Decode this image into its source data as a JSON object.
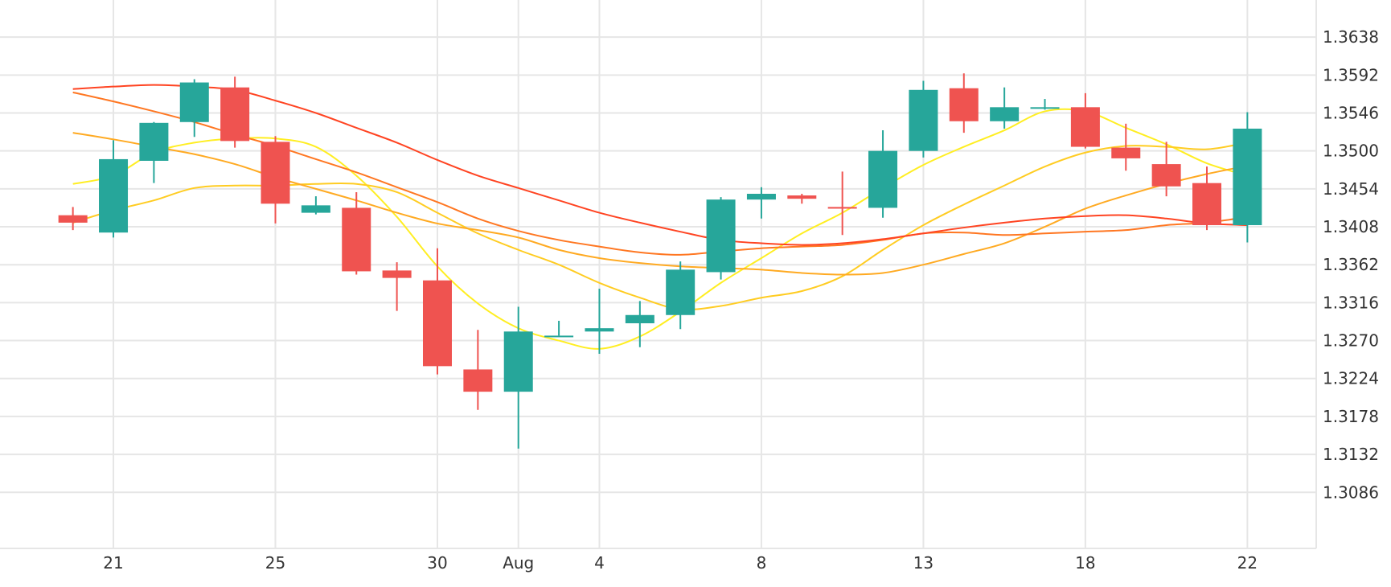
{
  "chart_data": {
    "type": "candlestick",
    "x_tick_labels": [
      {
        "x": 21,
        "label": "21"
      },
      {
        "x": 25,
        "label": "25"
      },
      {
        "x": 29,
        "label": "30"
      },
      {
        "x": 31,
        "label": "Aug"
      },
      {
        "x": 33,
        "label": "4"
      },
      {
        "x": 37,
        "label": "8"
      },
      {
        "x": 41,
        "label": "13"
      },
      {
        "x": 45,
        "label": "18"
      },
      {
        "x": 49,
        "label": "22"
      }
    ],
    "y_tick_labels": [
      "1.3086",
      "1.3132",
      "1.3178",
      "1.3224",
      "1.3270",
      "1.3316",
      "1.3362",
      "1.3408",
      "1.3454",
      "1.3500",
      "1.3546",
      "1.3592",
      "1.3638"
    ],
    "x_range": [
      18.2,
      50.7
    ],
    "y_range": [
      1.3018,
      1.3683
    ],
    "grid": true,
    "colors": {
      "up": "#26a69a",
      "down": "#ef5350"
    },
    "candles": [
      {
        "x": 20,
        "open": 1.3422,
        "high": 1.3432,
        "low": 1.3404,
        "close": 1.3413
      },
      {
        "x": 21,
        "open": 1.3401,
        "high": 1.3513,
        "low": 1.3395,
        "close": 1.349
      },
      {
        "x": 22,
        "open": 1.3488,
        "high": 1.3535,
        "low": 1.3461,
        "close": 1.3534
      },
      {
        "x": 23,
        "open": 1.3535,
        "high": 1.3587,
        "low": 1.3517,
        "close": 1.3583
      },
      {
        "x": 24,
        "open": 1.3577,
        "high": 1.359,
        "low": 1.3504,
        "close": 1.3512
      },
      {
        "x": 25,
        "open": 1.3511,
        "high": 1.3518,
        "low": 1.3412,
        "close": 1.3436
      },
      {
        "x": 26,
        "open": 1.3425,
        "high": 1.3445,
        "low": 1.3423,
        "close": 1.3434
      },
      {
        "x": 27,
        "open": 1.3431,
        "high": 1.345,
        "low": 1.335,
        "close": 1.3354
      },
      {
        "x": 28,
        "open": 1.3355,
        "high": 1.3365,
        "low": 1.3306,
        "close": 1.3346
      },
      {
        "x": 29,
        "open": 1.3343,
        "high": 1.3382,
        "low": 1.3229,
        "close": 1.3239
      },
      {
        "x": 30,
        "open": 1.3235,
        "high": 1.3283,
        "low": 1.3186,
        "close": 1.3208
      },
      {
        "x": 31,
        "open": 1.3208,
        "high": 1.3311,
        "low": 1.3139,
        "close": 1.3281
      },
      {
        "x": 32,
        "open": 1.3276,
        "high": 1.3294,
        "low": 1.3276,
        "close": 1.3276
      },
      {
        "x": 33,
        "open": 1.3281,
        "high": 1.3333,
        "low": 1.3254,
        "close": 1.3285
      },
      {
        "x": 34,
        "open": 1.3291,
        "high": 1.3318,
        "low": 1.3262,
        "close": 1.3301
      },
      {
        "x": 35,
        "open": 1.3301,
        "high": 1.3366,
        "low": 1.3284,
        "close": 1.3356
      },
      {
        "x": 36,
        "open": 1.3353,
        "high": 1.3444,
        "low": 1.3344,
        "close": 1.3441
      },
      {
        "x": 37,
        "open": 1.3441,
        "high": 1.3456,
        "low": 1.3418,
        "close": 1.3448
      },
      {
        "x": 38,
        "open": 1.3446,
        "high": 1.3448,
        "low": 1.3436,
        "close": 1.3442
      },
      {
        "x": 39,
        "open": 1.3432,
        "high": 1.3475,
        "low": 1.3398,
        "close": 1.343
      },
      {
        "x": 40,
        "open": 1.3431,
        "high": 1.3525,
        "low": 1.3419,
        "close": 1.35
      },
      {
        "x": 41,
        "open": 1.35,
        "high": 1.3585,
        "low": 1.3492,
        "close": 1.3574
      },
      {
        "x": 42,
        "open": 1.3576,
        "high": 1.3594,
        "low": 1.3522,
        "close": 1.3536
      },
      {
        "x": 43,
        "open": 1.3536,
        "high": 1.3577,
        "low": 1.3527,
        "close": 1.3553
      },
      {
        "x": 44,
        "open": 1.3553,
        "high": 1.3563,
        "low": 1.355,
        "close": 1.3553
      },
      {
        "x": 45,
        "open": 1.3553,
        "high": 1.357,
        "low": 1.3503,
        "close": 1.3505
      },
      {
        "x": 46,
        "open": 1.3504,
        "high": 1.3533,
        "low": 1.3476,
        "close": 1.3491
      },
      {
        "x": 47,
        "open": 1.3484,
        "high": 1.3511,
        "low": 1.3445,
        "close": 1.3457
      },
      {
        "x": 48,
        "open": 1.3461,
        "high": 1.3481,
        "low": 1.3404,
        "close": 1.341
      },
      {
        "x": 49,
        "open": 1.341,
        "high": 1.3547,
        "low": 1.3389,
        "close": 1.3527
      }
    ],
    "moving_averages": [
      {
        "color": "#ffee22",
        "points": [
          [
            20,
            1.346
          ],
          [
            21,
            1.347
          ],
          [
            22,
            1.3498
          ],
          [
            23,
            1.351
          ],
          [
            24,
            1.3515
          ],
          [
            25,
            1.3515
          ],
          [
            26,
            1.3505
          ],
          [
            27,
            1.347
          ],
          [
            28,
            1.342
          ],
          [
            29,
            1.336
          ],
          [
            30,
            1.3315
          ],
          [
            31,
            1.3285
          ],
          [
            32,
            1.327
          ],
          [
            33,
            1.326
          ],
          [
            34,
            1.3275
          ],
          [
            35,
            1.3305
          ],
          [
            36,
            1.334
          ],
          [
            37,
            1.337
          ],
          [
            38,
            1.34
          ],
          [
            39,
            1.3425
          ],
          [
            40,
            1.3455
          ],
          [
            41,
            1.3483
          ],
          [
            42,
            1.3505
          ],
          [
            43,
            1.3525
          ],
          [
            44,
            1.3548
          ],
          [
            45,
            1.3548
          ],
          [
            46,
            1.3528
          ],
          [
            47,
            1.3508
          ],
          [
            48,
            1.3485
          ],
          [
            49,
            1.347
          ]
        ]
      },
      {
        "color": "#ffcc22",
        "points": [
          [
            20,
            1.3413
          ],
          [
            21,
            1.3428
          ],
          [
            22,
            1.344
          ],
          [
            23,
            1.3455
          ],
          [
            24,
            1.3458
          ],
          [
            25,
            1.3458
          ],
          [
            26,
            1.346
          ],
          [
            27,
            1.346
          ],
          [
            28,
            1.345
          ],
          [
            29,
            1.3425
          ],
          [
            30,
            1.34
          ],
          [
            31,
            1.338
          ],
          [
            32,
            1.3362
          ],
          [
            33,
            1.334
          ],
          [
            34,
            1.3322
          ],
          [
            35,
            1.3308
          ],
          [
            36,
            1.3312
          ],
          [
            37,
            1.3322
          ],
          [
            38,
            1.333
          ],
          [
            39,
            1.3348
          ],
          [
            40,
            1.338
          ],
          [
            41,
            1.341
          ],
          [
            42,
            1.3435
          ],
          [
            43,
            1.3458
          ],
          [
            44,
            1.3481
          ],
          [
            45,
            1.3498
          ],
          [
            46,
            1.3506
          ],
          [
            47,
            1.3505
          ],
          [
            48,
            1.3502
          ],
          [
            49,
            1.351
          ]
        ]
      },
      {
        "color": "#ffaa22",
        "points": [
          [
            20,
            1.3522
          ],
          [
            21,
            1.3514
          ],
          [
            22,
            1.3505
          ],
          [
            23,
            1.3496
          ],
          [
            24,
            1.3484
          ],
          [
            25,
            1.3468
          ],
          [
            26,
            1.3454
          ],
          [
            27,
            1.344
          ],
          [
            28,
            1.3425
          ],
          [
            29,
            1.3412
          ],
          [
            30,
            1.3404
          ],
          [
            31,
            1.3395
          ],
          [
            32,
            1.338
          ],
          [
            33,
            1.337
          ],
          [
            34,
            1.3364
          ],
          [
            35,
            1.336
          ],
          [
            36,
            1.3358
          ],
          [
            37,
            1.3356
          ],
          [
            38,
            1.3352
          ],
          [
            39,
            1.335
          ],
          [
            40,
            1.3352
          ],
          [
            41,
            1.3362
          ],
          [
            42,
            1.3375
          ],
          [
            43,
            1.3388
          ],
          [
            44,
            1.3408
          ],
          [
            45,
            1.343
          ],
          [
            46,
            1.3446
          ],
          [
            47,
            1.346
          ],
          [
            48,
            1.3472
          ],
          [
            49,
            1.3482
          ]
        ]
      },
      {
        "color": "#ff7722",
        "points": [
          [
            20,
            1.3571
          ],
          [
            21,
            1.356
          ],
          [
            22,
            1.3548
          ],
          [
            23,
            1.3535
          ],
          [
            24,
            1.352
          ],
          [
            25,
            1.3506
          ],
          [
            26,
            1.349
          ],
          [
            27,
            1.3474
          ],
          [
            28,
            1.3456
          ],
          [
            29,
            1.3438
          ],
          [
            30,
            1.3418
          ],
          [
            31,
            1.3403
          ],
          [
            32,
            1.3392
          ],
          [
            33,
            1.3384
          ],
          [
            34,
            1.3377
          ],
          [
            35,
            1.3374
          ],
          [
            36,
            1.3378
          ],
          [
            37,
            1.3382
          ],
          [
            38,
            1.3384
          ],
          [
            39,
            1.3386
          ],
          [
            40,
            1.3392
          ],
          [
            41,
            1.34
          ],
          [
            42,
            1.3401
          ],
          [
            43,
            1.3398
          ],
          [
            44,
            1.34
          ],
          [
            45,
            1.3402
          ],
          [
            46,
            1.3404
          ],
          [
            47,
            1.341
          ],
          [
            48,
            1.3413
          ],
          [
            49,
            1.342
          ]
        ]
      },
      {
        "color": "#ff4422",
        "points": [
          [
            20,
            1.3575
          ],
          [
            21,
            1.3578
          ],
          [
            22,
            1.358
          ],
          [
            23,
            1.3578
          ],
          [
            24,
            1.3574
          ],
          [
            25,
            1.3561
          ],
          [
            26,
            1.3546
          ],
          [
            27,
            1.3528
          ],
          [
            28,
            1.351
          ],
          [
            29,
            1.3489
          ],
          [
            30,
            1.347
          ],
          [
            31,
            1.3455
          ],
          [
            32,
            1.344
          ],
          [
            33,
            1.3425
          ],
          [
            34,
            1.3413
          ],
          [
            35,
            1.3402
          ],
          [
            36,
            1.3392
          ],
          [
            37,
            1.3388
          ],
          [
            38,
            1.3386
          ],
          [
            39,
            1.3388
          ],
          [
            40,
            1.3393
          ],
          [
            41,
            1.34
          ],
          [
            42,
            1.3407
          ],
          [
            43,
            1.3413
          ],
          [
            44,
            1.3418
          ],
          [
            45,
            1.3421
          ],
          [
            46,
            1.3422
          ],
          [
            47,
            1.3418
          ],
          [
            48,
            1.3412
          ],
          [
            49,
            1.341
          ]
        ]
      }
    ]
  }
}
